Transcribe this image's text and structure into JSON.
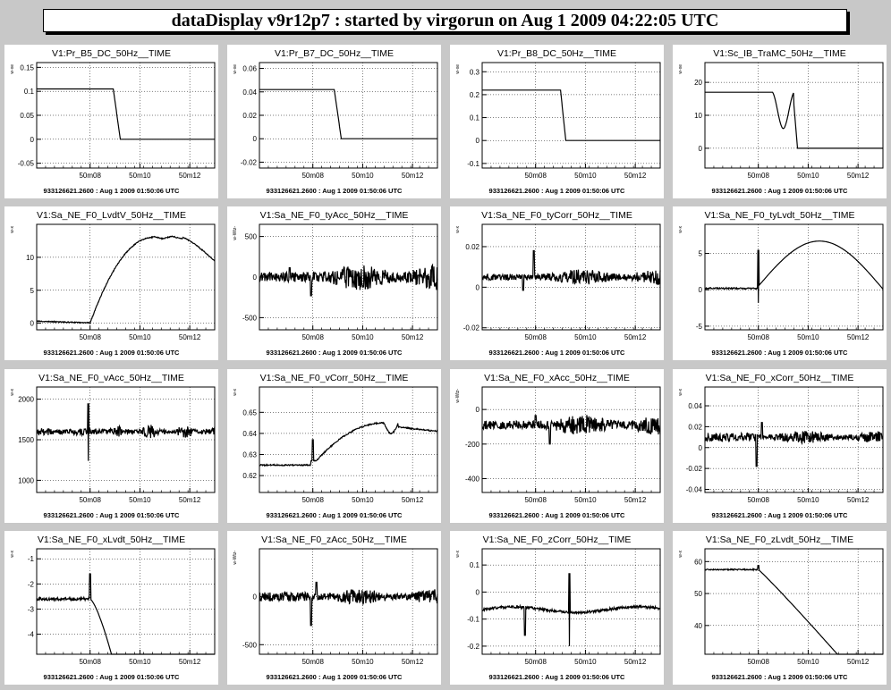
{
  "window": {
    "title": "dataDisplay v9r12p7 : started by virgorun on Aug  1 2009 04:22:05 UTC",
    "footer": "933126621.2600 : Aug 1 2009 01:50:06 UTC",
    "x_ticks": [
      "50m08",
      "50m10",
      "50m12"
    ]
  },
  "chart_data": [
    {
      "type": "line",
      "title": "V1:Pr_B5_DC_50Hz__TIME",
      "ylabel": "w-xe",
      "ylim": [
        -0.06,
        0.16
      ],
      "yticks": [
        -0.05,
        0,
        0.05,
        0.1,
        0.15
      ],
      "shape": "step",
      "params": [
        0.105,
        0,
        0.43,
        0.47
      ]
    },
    {
      "type": "line",
      "title": "V1:Pr_B7_DC_50Hz__TIME",
      "ylabel": "w-xe",
      "ylim": [
        -0.025,
        0.065
      ],
      "yticks": [
        -0.02,
        0,
        0.02,
        0.04,
        0.06
      ],
      "shape": "step",
      "params": [
        0.042,
        0,
        0.42,
        0.46
      ]
    },
    {
      "type": "line",
      "title": "V1:Pr_B8_DC_50Hz__TIME",
      "ylabel": "w-xe",
      "ylim": [
        -0.12,
        0.34
      ],
      "yticks": [
        -0.1,
        0,
        0.1,
        0.2,
        0.3
      ],
      "shape": "step",
      "params": [
        0.22,
        0,
        0.44,
        0.47
      ]
    },
    {
      "type": "line",
      "title": "V1:Sc_IB_TraMC_50Hz__TIME",
      "ylabel": "w-xe",
      "ylim": [
        -6,
        26
      ],
      "yticks": [
        0,
        10,
        20
      ],
      "shape": "tramc",
      "params": [
        17,
        0
      ]
    },
    {
      "type": "line",
      "title": "V1:Sa_NE_F0_LvdtV_50Hz__TIME",
      "ylabel": "w-x",
      "ylim": [
        -1,
        15
      ],
      "yticks": [
        0,
        5,
        10
      ],
      "shape": "lvdtv",
      "params": []
    },
    {
      "type": "line",
      "title": "V1:Sa_NE_F0_tyAcc_50Hz__TIME",
      "ylabel": "w-Wtz-",
      "ylim": [
        -650,
        650
      ],
      "yticks": [
        -500,
        0,
        500
      ],
      "shape": "noise",
      "params": [
        0,
        60,
        160,
        0.29,
        -230,
        0.17
      ]
    },
    {
      "type": "line",
      "title": "V1:Sa_NE_F0_tyCorr_50Hz__TIME",
      "ylabel": "w-x",
      "ylim": [
        -0.021,
        0.031
      ],
      "yticks": [
        -0.02,
        0,
        0.02
      ],
      "shape": "noise",
      "params": [
        0.005,
        0.0015,
        0.004,
        0.29,
        0.018,
        0.23
      ]
    },
    {
      "type": "line",
      "title": "V1:Sa_NE_F0_tyLvdt_50Hz__TIME",
      "ylabel": "w-x",
      "ylim": [
        -5.5,
        9
      ],
      "yticks": [
        -5,
        0,
        5
      ],
      "shape": "tylvdt",
      "params": []
    },
    {
      "type": "line",
      "title": "V1:Sa_NE_F0_vAcc_50Hz__TIME",
      "ylabel": "w-x",
      "ylim": [
        850,
        2150
      ],
      "yticks": [
        1000,
        1500,
        2000
      ],
      "shape": "vacc",
      "params": []
    },
    {
      "type": "line",
      "title": "V1:Sa_NE_F0_vCorr_50Hz__TIME",
      "ylabel": "w-x",
      "ylim": [
        0.612,
        0.662
      ],
      "yticks": [
        0.62,
        0.63,
        0.64,
        0.65
      ],
      "shape": "vcorr",
      "params": []
    },
    {
      "type": "line",
      "title": "V1:Sa_NE_F0_xAcc_50Hz__TIME",
      "ylabel": "w-Wtz-",
      "ylim": [
        -480,
        130
      ],
      "yticks": [
        -400,
        -200,
        0
      ],
      "shape": "noise",
      "params": [
        -90,
        25,
        60,
        0.38,
        -200,
        0.3
      ]
    },
    {
      "type": "line",
      "title": "V1:Sa_NE_F0_xCorr_50Hz__TIME",
      "ylabel": "w-x",
      "ylim": [
        -0.043,
        0.058
      ],
      "yticks": [
        -0.04,
        -0.02,
        0,
        0.02,
        0.04
      ],
      "shape": "noise",
      "params": [
        0.01,
        0.004,
        0.006,
        0.29,
        -0.018,
        0.32
      ]
    },
    {
      "type": "line",
      "title": "V1:Sa_NE_F0_xLvdt_50Hz__TIME",
      "ylabel": "w-x",
      "ylim": [
        -4.8,
        -0.6
      ],
      "yticks": [
        -4,
        -3,
        -2,
        -1
      ],
      "shape": "xlvdt",
      "params": []
    },
    {
      "type": "line",
      "title": "V1:Sa_NE_F0_zAcc_50Hz__TIME",
      "ylabel": "w-Wtz-",
      "ylim": [
        -600,
        500
      ],
      "yticks": [
        -500,
        0
      ],
      "shape": "noise",
      "params": [
        0,
        50,
        80,
        0.29,
        -300,
        0.32
      ]
    },
    {
      "type": "line",
      "title": "V1:Sa_NE_F0_zCorr_50Hz__TIME",
      "ylabel": "w-x",
      "ylim": [
        -0.23,
        0.16
      ],
      "yticks": [
        -0.2,
        -0.1,
        0,
        0.1
      ],
      "shape": "zcorr",
      "params": []
    },
    {
      "type": "line",
      "title": "V1:Sa_NE_F0_zLvdt_50Hz__TIME",
      "ylabel": "w-x",
      "ylim": [
        31,
        64
      ],
      "yticks": [
        40,
        50,
        60
      ],
      "shape": "zlvdt",
      "params": []
    }
  ]
}
